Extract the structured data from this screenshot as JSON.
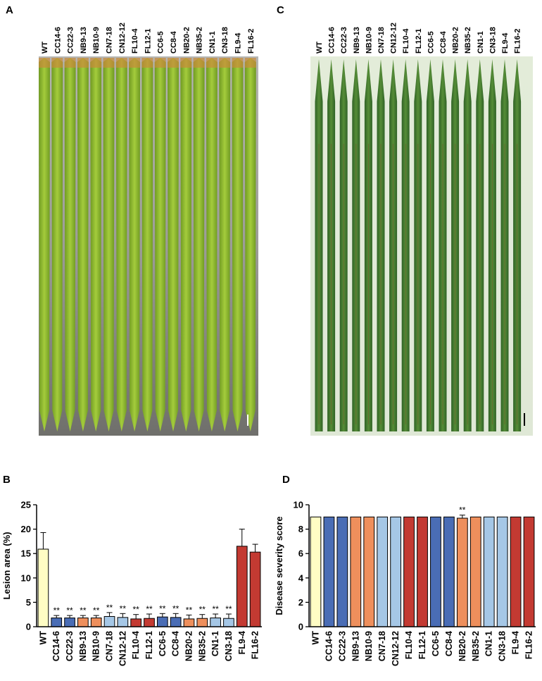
{
  "panels": {
    "A": "A",
    "B": "B",
    "C": "C",
    "D": "D"
  },
  "photo_A": {
    "labels": [
      "WT",
      "CC14-6",
      "CC22-3",
      "NB9-13",
      "NB10-9",
      "CN7-18",
      "CN12-12",
      "FL10-4",
      "FL12-1",
      "CC6-5",
      "CC8-4",
      "NB20-2",
      "NB35-2",
      "CN1-1",
      "CN3-18",
      "FL9-4",
      "FL16-2"
    ]
  },
  "photo_C": {
    "labels": [
      "WT",
      "CC14-6",
      "CC22-3",
      "NB9-13",
      "NB10-9",
      "CN7-18",
      "CN12-12",
      "FL10-4",
      "FL12-1",
      "CC6-5",
      "CC8-4",
      "NB20-2",
      "NB35-2",
      "CN1-1",
      "CN3-18",
      "FL9-4",
      "FL16-2"
    ]
  },
  "colors": {
    "WT": "#fffdc4",
    "CC": "#4a6db5",
    "NB": "#ee8f5c",
    "CN": "#a5c7e6",
    "FL": "#c33a32",
    "leaf_green": "#8dbb2c",
    "leaf_dark": "#3f7a2a"
  },
  "chart_data": [
    {
      "type": "bar",
      "ylabel": "Lesion area (%)",
      "ylim": [
        0,
        25
      ],
      "yticks": [
        "0",
        "5",
        "10",
        "15",
        "20",
        "25"
      ],
      "categories": [
        "WT",
        "CC14-6",
        "CC22-3",
        "NB9-13",
        "NB10-9",
        "CN7-18",
        "CN12-12",
        "FL10-4",
        "FL12-1",
        "CC6-5",
        "CC8-4",
        "NB20-2",
        "NB35-2",
        "CN1-1",
        "CN3-18",
        "FL9-4",
        "FL16-2"
      ],
      "values": [
        15.9,
        1.8,
        1.8,
        1.8,
        1.8,
        2.1,
        1.9,
        1.6,
        1.7,
        2.0,
        1.9,
        1.6,
        1.7,
        1.8,
        1.7,
        16.5,
        15.3
      ],
      "errors": [
        3.4,
        0.5,
        0.5,
        0.5,
        0.5,
        0.8,
        0.8,
        0.9,
        0.9,
        0.7,
        0.8,
        0.8,
        0.8,
        0.8,
        0.9,
        3.5,
        1.6
      ],
      "groups": [
        "WT",
        "CC",
        "CC",
        "NB",
        "NB",
        "CN",
        "CN",
        "FL",
        "FL",
        "CC",
        "CC",
        "NB",
        "NB",
        "CN",
        "CN",
        "FL",
        "FL"
      ],
      "annotations": [
        "",
        "**",
        "**",
        "**",
        "**",
        "**",
        "**",
        "**",
        "**",
        "**",
        "**",
        "**",
        "**",
        "**",
        "**",
        "",
        ""
      ]
    },
    {
      "type": "bar",
      "ylabel": "Disease severity score",
      "ylim": [
        0,
        10
      ],
      "yticks": [
        "0",
        "2",
        "4",
        "6",
        "8",
        "10"
      ],
      "categories": [
        "WT",
        "CC14-6",
        "CC22-3",
        "NB9-13",
        "NB10-9",
        "CN7-18",
        "CN12-12",
        "FL10-4",
        "FL12-1",
        "CC6-5",
        "CC8-4",
        "NB20-2",
        "NB35-2",
        "CN1-1",
        "CN3-18",
        "FL9-4",
        "FL16-2"
      ],
      "values": [
        9,
        9,
        9,
        9,
        9,
        9,
        9,
        9,
        9,
        9,
        9,
        8.9,
        9,
        9,
        9,
        9,
        9
      ],
      "errors": [
        0,
        0,
        0,
        0,
        0,
        0,
        0,
        0,
        0,
        0,
        0,
        0.25,
        0,
        0,
        0,
        0,
        0
      ],
      "groups": [
        "WT",
        "CC",
        "CC",
        "NB",
        "NB",
        "CN",
        "CN",
        "FL",
        "FL",
        "CC",
        "CC",
        "NB",
        "NB",
        "CN",
        "CN",
        "FL",
        "FL"
      ],
      "annotations": [
        "",
        "",
        "",
        "",
        "",
        "",
        "",
        "",
        "",
        "",
        "",
        "**",
        "",
        "",
        "",
        "",
        ""
      ]
    }
  ]
}
